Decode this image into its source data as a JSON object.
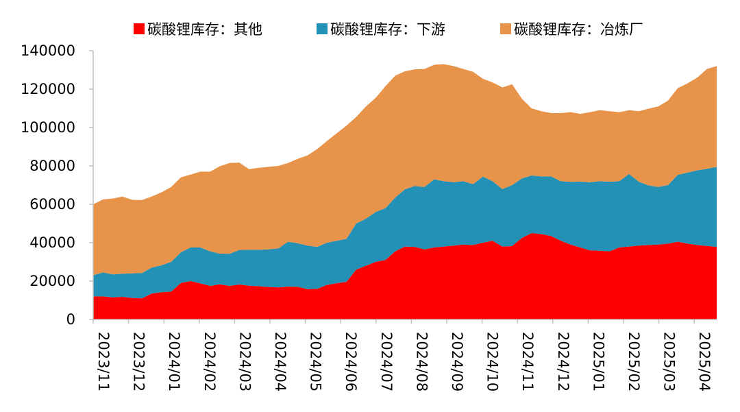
{
  "chart_data": {
    "type": "area",
    "stacked": true,
    "ylim": [
      0,
      140000
    ],
    "yticks": [
      "0",
      "20000",
      "40000",
      "60000",
      "80000",
      "100000",
      "120000",
      "140000"
    ],
    "x_tick_labels": [
      "2023/11",
      "2023/12",
      "2024/01",
      "2024/02",
      "2024/03",
      "2024/04",
      "2024/05",
      "2024/06",
      "2024/07",
      "2024/08",
      "2024/09",
      "2024/10",
      "2024/11",
      "2024/12",
      "2025/01",
      "2025/02",
      "2025/03",
      "2025/04"
    ],
    "legend_position": "top",
    "series": [
      {
        "name": "碳酸锂库存：其他",
        "color": "#ff0000",
        "values": [
          12000,
          12000,
          11500,
          11800,
          11200,
          11000,
          13500,
          14200,
          14500,
          19000,
          20000,
          18800,
          17500,
          18300,
          17500,
          18200,
          17600,
          17300,
          16900,
          16700,
          17100,
          17000,
          15800,
          16000,
          18000,
          18900,
          19600,
          26000,
          28000,
          30000,
          31000,
          35500,
          38000,
          37800,
          36500,
          37500,
          38000,
          38500,
          39000,
          38800,
          40000,
          41000,
          38000,
          38200,
          42500,
          45000,
          44500,
          43500,
          41000,
          39000,
          37500,
          36000,
          35800,
          35500,
          37500,
          38000,
          38500,
          38800,
          39000,
          39500,
          40500,
          39500,
          38800,
          38300,
          37800
        ]
      },
      {
        "name": "碳酸锂库存：下游",
        "color": "#2391b5",
        "values": [
          11000,
          12500,
          12000,
          12000,
          12800,
          13200,
          13500,
          14000,
          15500,
          16000,
          17500,
          18700,
          18000,
          16000,
          16700,
          18000,
          18700,
          19000,
          19600,
          20300,
          23400,
          22700,
          22700,
          21800,
          22000,
          22100,
          22400,
          24000,
          24500,
          26000,
          27000,
          28000,
          29800,
          31700,
          32500,
          35500,
          34000,
          33000,
          33000,
          31700,
          34400,
          31000,
          29900,
          31800,
          31000,
          30000,
          30000,
          31000,
          31000,
          32700,
          34300,
          35500,
          36200,
          36300,
          34500,
          37800,
          33300,
          31000,
          30000,
          30500,
          34800,
          37000,
          38900,
          40200,
          41700
        ]
      },
      {
        "name": "碳酸锂库存：冶炼厂",
        "color": "#e8934a",
        "values": [
          37000,
          38000,
          39500,
          40200,
          38300,
          38000,
          37000,
          38000,
          39000,
          39000,
          38000,
          39500,
          41500,
          45500,
          47300,
          45500,
          42000,
          42700,
          43000,
          43000,
          41000,
          44000,
          47000,
          51000,
          53000,
          56000,
          59000,
          55500,
          58500,
          59500,
          63500,
          63500,
          61500,
          60800,
          61500,
          59700,
          61000,
          60500,
          58500,
          58500,
          51000,
          51500,
          53000,
          52500,
          41500,
          35000,
          34000,
          33000,
          35500,
          36300,
          35300,
          36500,
          37000,
          36700,
          36000,
          33200,
          36700,
          40000,
          42000,
          44000,
          45200,
          46500,
          48300,
          52000,
          52500
        ]
      }
    ]
  }
}
